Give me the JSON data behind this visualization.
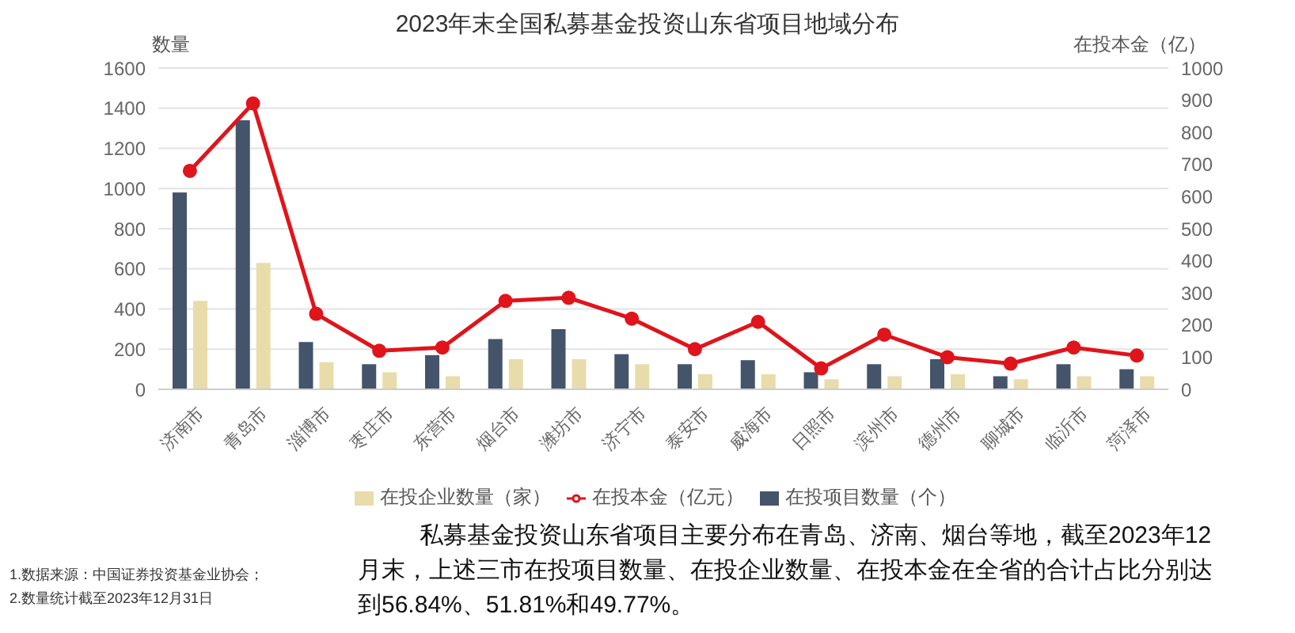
{
  "chart_data": {
    "type": "bar",
    "title": "2023年末全国私募基金投资山东省项目地域分布",
    "ylabel": "数量",
    "y2label": "在投本金（亿）",
    "categories": [
      "济南市",
      "青岛市",
      "淄博市",
      "枣庄市",
      "东营市",
      "烟台市",
      "潍坊市",
      "济宁市",
      "泰安市",
      "威海市",
      "日照市",
      "滨州市",
      "德州市",
      "聊城市",
      "临沂市",
      "菏泽市"
    ],
    "series": [
      {
        "name": "在投项目数量（个）",
        "color": "#44546a",
        "values": [
          980,
          1340,
          235,
          125,
          170,
          250,
          300,
          175,
          125,
          145,
          85,
          125,
          150,
          65,
          125,
          100
        ]
      },
      {
        "name": "在投企业数量（家）",
        "color": "#e8dcaa",
        "values": [
          440,
          630,
          135,
          85,
          65,
          150,
          150,
          125,
          75,
          75,
          50,
          65,
          75,
          50,
          65,
          65
        ]
      },
      {
        "name": "在投本金（亿元）",
        "type": "line",
        "axis": "y2",
        "color": "#e0141b",
        "values": [
          680,
          890,
          235,
          120,
          130,
          275,
          285,
          220,
          125,
          210,
          65,
          170,
          100,
          80,
          130,
          105
        ]
      }
    ],
    "ylim": [
      0,
      1600
    ],
    "yticks": [
      0,
      200,
      400,
      600,
      800,
      1000,
      1200,
      1400,
      1600
    ],
    "y2lim": [
      0,
      1000
    ],
    "y2ticks": [
      0,
      100,
      200,
      300,
      400,
      500,
      600,
      700,
      800,
      900,
      1000
    ],
    "grid": "y",
    "legend": "bottom",
    "marker": "circle",
    "annotations": [
      "1.数据来源：中国证券投资基金业协会；",
      "2.数量统计截至2023年12月31日",
      "私募基金投资山东省项目主要分布在青岛、济南、烟台等地，截至2023年12月末，上述三市在投项目数量、在投企业数量、在投本金在全省的合计占比分别达到56.84%、51.81%和49.77%。"
    ]
  }
}
